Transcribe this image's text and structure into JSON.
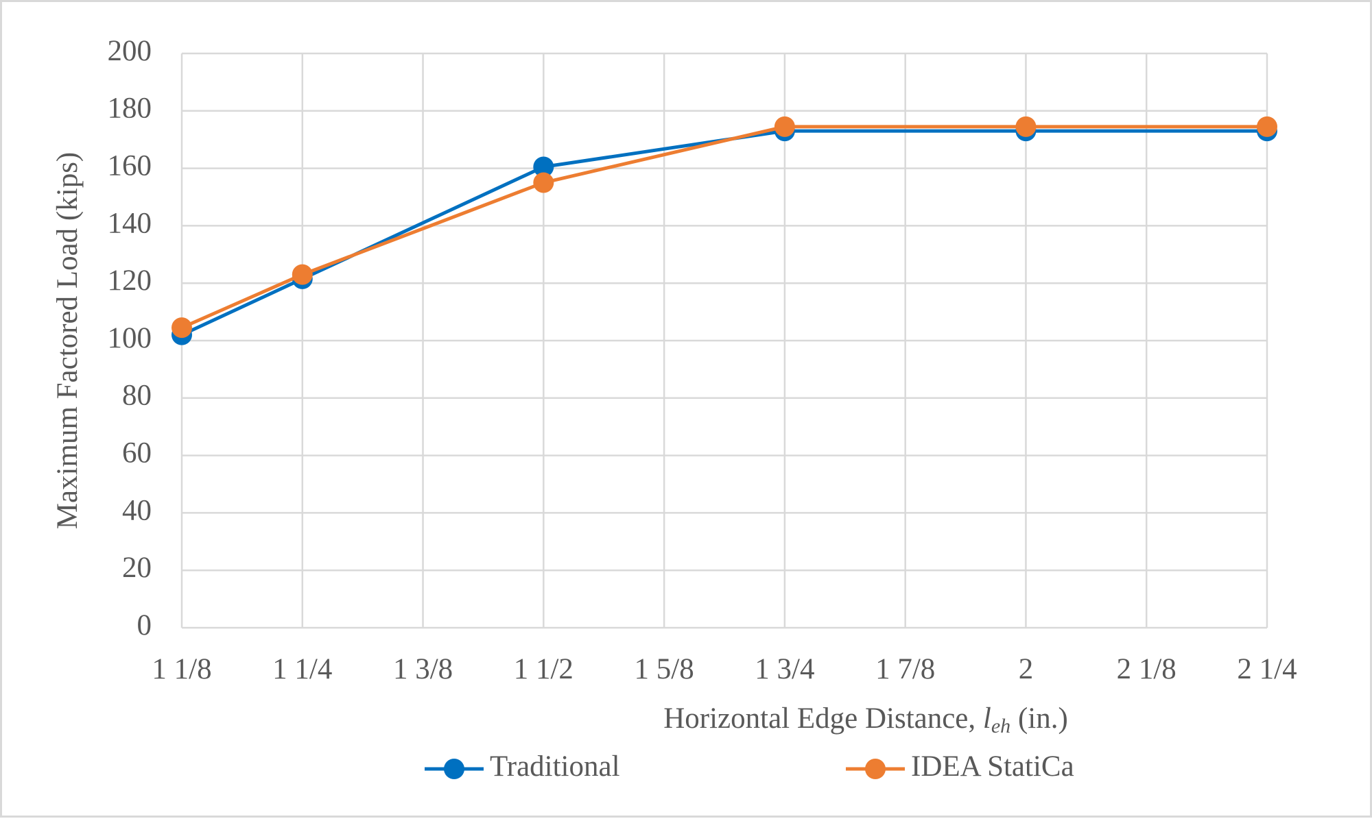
{
  "chart_data": {
    "type": "line",
    "y_label": "Maximum Factored Load (kips)",
    "x_label": {
      "text": "Horizontal Edge Distance, ",
      "symbol": "l",
      "subscript": "eh",
      "unit": " (in.)"
    },
    "x": [
      1.125,
      1.25,
      1.5,
      1.75,
      2,
      2.25
    ],
    "series": [
      {
        "name": "Traditional",
        "color": "#0070c0",
        "values": [
          102,
          121.5,
          160.5,
          173,
          173,
          173
        ]
      },
      {
        "name": "IDEA StatiCa",
        "color": "#ed7d31",
        "values": [
          104.5,
          123,
          155,
          174.5,
          174.5,
          174.5
        ]
      }
    ],
    "xlim": [
      1.125,
      2.25
    ],
    "xticks": [
      {
        "value": 1.125,
        "label": "1 1/8"
      },
      {
        "value": 1.25,
        "label": "1 1/4"
      },
      {
        "value": 1.375,
        "label": "1 3/8"
      },
      {
        "value": 1.5,
        "label": "1 1/2"
      },
      {
        "value": 1.625,
        "label": "1 5/8"
      },
      {
        "value": 1.75,
        "label": "1 3/4"
      },
      {
        "value": 1.875,
        "label": "1 7/8"
      },
      2,
      {
        "value": 2.125,
        "label": "2 1/8"
      },
      {
        "value": 2.25,
        "label": "2 1/4"
      }
    ],
    "ylim": [
      0,
      200
    ],
    "yticks": [
      0,
      20,
      40,
      60,
      80,
      100,
      120,
      140,
      160,
      180,
      200
    ],
    "grid": true,
    "legend": "bottom"
  }
}
